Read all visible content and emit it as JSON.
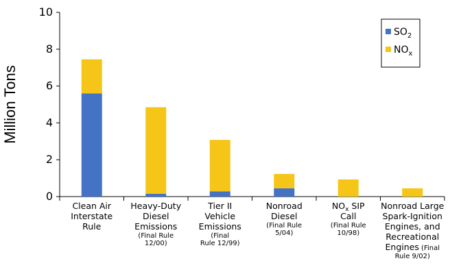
{
  "chart_data": {
    "type": "bar",
    "stacked": true,
    "ylabel": "Million Tons",
    "ylim": [
      0,
      10
    ],
    "yticks": [
      "0",
      "2",
      "4",
      "6",
      "8",
      "10"
    ],
    "grid": false,
    "legend_position": "top-right",
    "colors": {
      "so2": "#4472c4",
      "nox": "#f5c518"
    },
    "categories": [
      {
        "lines": [
          "Clean Air",
          "Interstate",
          "Rule"
        ],
        "note": []
      },
      {
        "lines": [
          "Heavy-Duty",
          "Diesel",
          "Emissions"
        ],
        "note": [
          "(Final Rule",
          "12/00)"
        ]
      },
      {
        "lines": [
          "Tier II",
          "Vehicle",
          "Emissions"
        ],
        "note": [
          "(Final",
          "Rule 12/99)"
        ]
      },
      {
        "lines": [
          "Nonroad",
          "Diesel"
        ],
        "note": [
          "(Final Rule",
          "5/04)"
        ]
      },
      {
        "lines": [
          "NOx SIP",
          "Call"
        ],
        "note": [
          "(Final Rule",
          "10/98)"
        ]
      },
      {
        "lines": [
          "Nonroad Large",
          "Spark-Ignition",
          "Engines, and",
          "Recreational",
          "Engines"
        ],
        "note": [
          "(Final",
          "Rule 9/02)"
        ]
      }
    ],
    "series": [
      {
        "name": "SO2",
        "label_main": "SO",
        "label_sub": "2",
        "values": [
          5.6,
          0.15,
          0.28,
          0.45,
          0.0,
          0.0
        ]
      },
      {
        "name": "NOx",
        "label_main": "NO",
        "label_sub": "x",
        "values": [
          1.85,
          4.7,
          2.8,
          0.78,
          0.93,
          0.45
        ]
      }
    ]
  }
}
